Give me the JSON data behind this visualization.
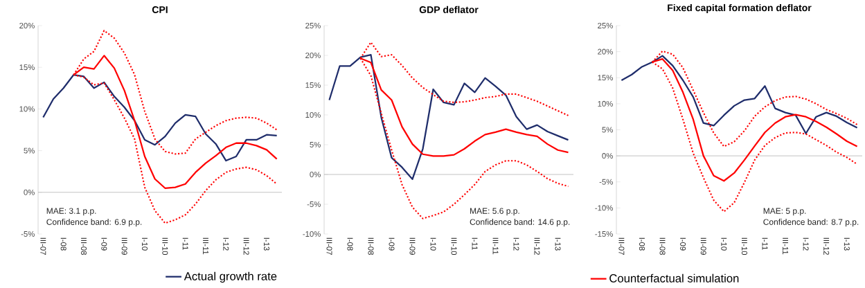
{
  "chart_data": [
    {
      "type": "line",
      "title": "CPI",
      "categories": [
        "III-07",
        null,
        "I-08",
        null,
        "III-08",
        null,
        "I-09",
        null,
        "III-09",
        null,
        "I-10",
        null,
        "III-10",
        null,
        "I-11",
        null,
        "III-11",
        null,
        "I-12",
        null,
        "III-12",
        null,
        "I-13",
        null
      ],
      "series": [
        {
          "name": "Actual growth rate",
          "color": "#1f2d6b",
          "line_style": "solid",
          "values": [
            9.0,
            11.2,
            12.5,
            14.1,
            13.9,
            12.5,
            13.2,
            11.5,
            10.2,
            8.6,
            6.3,
            5.7,
            6.7,
            8.3,
            9.3,
            9.1,
            7.0,
            5.8,
            3.8,
            4.3,
            6.3,
            6.3,
            6.9,
            6.8
          ]
        },
        {
          "color": "#ff0000",
          "line_style": "solid",
          "values": [
            null,
            null,
            null,
            14.1,
            15.0,
            14.8,
            16.4,
            14.9,
            12.2,
            8.6,
            4.3,
            1.6,
            0.5,
            0.6,
            1.0,
            2.4,
            3.5,
            4.4,
            5.4,
            5.9,
            5.9,
            5.6,
            5.1,
            4.0
          ]
        },
        {
          "color": "#ff0000",
          "line_style": "dotted",
          "values": [
            null,
            null,
            null,
            14.1,
            16.0,
            16.9,
            19.4,
            18.5,
            16.7,
            14.1,
            9.7,
            6.4,
            4.9,
            4.6,
            4.7,
            6.4,
            7.2,
            8.0,
            8.6,
            8.9,
            9.0,
            8.9,
            8.3,
            7.5
          ]
        },
        {
          "color": "#ff0000",
          "line_style": "dotted",
          "values": [
            null,
            null,
            null,
            14.1,
            13.8,
            12.9,
            13.1,
            11.1,
            8.9,
            6.4,
            0.6,
            -2.2,
            -3.7,
            -3.3,
            -2.7,
            -1.4,
            0.2,
            1.5,
            2.4,
            2.8,
            3.0,
            2.7,
            2.0,
            1.0
          ]
        }
      ],
      "ylim": [
        -5,
        20
      ],
      "yticks": [
        {
          "value": -5,
          "label": "-5%"
        },
        {
          "value": 0,
          "label": "0%"
        },
        {
          "value": 5,
          "label": "5%"
        },
        {
          "value": 10,
          "label": "10%"
        },
        {
          "value": 15,
          "label": "15%"
        },
        {
          "value": 20,
          "label": "20%"
        }
      ],
      "annotations": [
        "MAE: 3.1 p.p.",
        "Confidence band: 6.9 p.p."
      ],
      "legend": "bottom right"
    },
    {
      "type": "line",
      "title": "GDP deflator",
      "categories": [
        "III-07",
        null,
        "I-08",
        null,
        "III-08",
        null,
        "I-09",
        null,
        "III-09",
        null,
        "I-10",
        null,
        "III-10",
        null,
        "I-11",
        null,
        "III-11",
        null,
        "I-12",
        null,
        "III-12",
        null,
        "I-13",
        null
      ],
      "series": [
        {
          "color": "#1f2d6b",
          "line_style": "solid",
          "values": [
            12.5,
            18.2,
            18.2,
            19.7,
            20.1,
            9.6,
            2.8,
            1.2,
            -0.8,
            4.3,
            14.3,
            12.1,
            11.7,
            15.3,
            13.8,
            16.2,
            14.8,
            13.3,
            9.7,
            7.6,
            8.3,
            7.2,
            6.5,
            5.8
          ]
        },
        {
          "color": "#ff0000",
          "line_style": "solid",
          "values": [
            null,
            null,
            null,
            19.5,
            18.8,
            14.2,
            12.5,
            8.0,
            5.1,
            3.4,
            3.1,
            3.1,
            3.3,
            4.3,
            5.6,
            6.7,
            7.1,
            7.6,
            7.1,
            6.7,
            6.4,
            5.1,
            4.1,
            3.7
          ]
        },
        {
          "color": "#ff0000",
          "line_style": "dotted",
          "values": [
            null,
            null,
            null,
            19.5,
            22.2,
            19.8,
            20.1,
            18.3,
            16.2,
            14.6,
            13.4,
            12.3,
            12.1,
            12.2,
            12.5,
            12.9,
            13.1,
            13.5,
            13.5,
            12.9,
            12.3,
            11.5,
            10.7,
            9.9
          ]
        },
        {
          "color": "#ff0000",
          "line_style": "dotted",
          "values": [
            null,
            null,
            null,
            19.5,
            16.6,
            10.3,
            4.1,
            -1.7,
            -5.5,
            -7.4,
            -6.9,
            -6.3,
            -5.0,
            -3.4,
            -1.7,
            0.5,
            1.6,
            2.3,
            2.3,
            1.6,
            0.5,
            -0.7,
            -1.5,
            -2.0
          ]
        }
      ],
      "ylim": [
        -10,
        25
      ],
      "yticks": [
        {
          "value": -10,
          "label": "-10%"
        },
        {
          "value": -5,
          "label": "-5%"
        },
        {
          "value": 0,
          "label": "0%"
        },
        {
          "value": 5,
          "label": "5%"
        },
        {
          "value": 10,
          "label": "10%"
        },
        {
          "value": 15,
          "label": "15%"
        },
        {
          "value": 20,
          "label": "20%"
        },
        {
          "value": 25,
          "label": "25%"
        }
      ],
      "annotations": [
        "MAE: 5.6 p.p.",
        "Confidence band: 14.6 p.p."
      ]
    },
    {
      "type": "line",
      "title": "Fixed capital formation deflator",
      "categories": [
        "III-07",
        null,
        "I-08",
        null,
        "III-08",
        null,
        "I-09",
        null,
        "III-09",
        null,
        "I-10",
        null,
        "III-10",
        null,
        "I-11",
        null,
        "III-11",
        null,
        "I-12",
        null,
        "III-12",
        null,
        "I-13",
        null
      ],
      "series": [
        {
          "color": "#1f2d6b",
          "line_style": "solid",
          "values": [
            14.5,
            15.6,
            17.1,
            18.0,
            19.2,
            17.3,
            14.5,
            11.3,
            6.3,
            5.8,
            7.8,
            9.6,
            10.7,
            11.0,
            13.4,
            9.1,
            8.3,
            7.8,
            4.3,
            7.5,
            8.3,
            7.6,
            6.4,
            5.4
          ]
        },
        {
          "name": "Counterfactual simulation",
          "color": "#ff0000",
          "line_style": "solid",
          "values": [
            null,
            null,
            null,
            18.0,
            18.6,
            16.4,
            12.2,
            7.0,
            0.0,
            -3.8,
            -4.8,
            -3.3,
            -0.8,
            1.9,
            4.5,
            6.3,
            7.5,
            7.9,
            7.5,
            6.6,
            5.5,
            4.2,
            2.8,
            1.8
          ]
        },
        {
          "color": "#ff0000",
          "line_style": "dotted",
          "values": [
            null,
            null,
            null,
            18.0,
            20.1,
            19.5,
            16.9,
            12.6,
            8.3,
            4.4,
            1.8,
            2.7,
            4.8,
            7.6,
            9.4,
            10.6,
            11.3,
            11.4,
            10.9,
            10.0,
            8.9,
            8.1,
            7.2,
            6.0
          ]
        },
        {
          "color": "#ff0000",
          "line_style": "dotted",
          "values": [
            null,
            null,
            null,
            18.0,
            16.7,
            13.0,
            7.0,
            0.5,
            -4.2,
            -8.5,
            -10.7,
            -9.0,
            -5.1,
            -0.8,
            2.0,
            3.5,
            4.4,
            4.5,
            4.2,
            3.1,
            2.0,
            0.7,
            -0.3,
            -1.6
          ]
        }
      ],
      "ylim": [
        -15,
        25
      ],
      "yticks": [
        {
          "value": -15,
          "label": "-15%"
        },
        {
          "value": -10,
          "label": "-10%"
        },
        {
          "value": -5,
          "label": "-5%"
        },
        {
          "value": 0,
          "label": "0%"
        },
        {
          "value": 5,
          "label": "5%"
        },
        {
          "value": 10,
          "label": "10%"
        },
        {
          "value": 15,
          "label": "15%"
        },
        {
          "value": 20,
          "label": "20%"
        },
        {
          "value": 25,
          "label": "25%"
        }
      ],
      "annotations": [
        "MAE: 5 p.p.",
        "Confidence band: 8.7 p.p."
      ],
      "legend": "bottom left"
    }
  ]
}
